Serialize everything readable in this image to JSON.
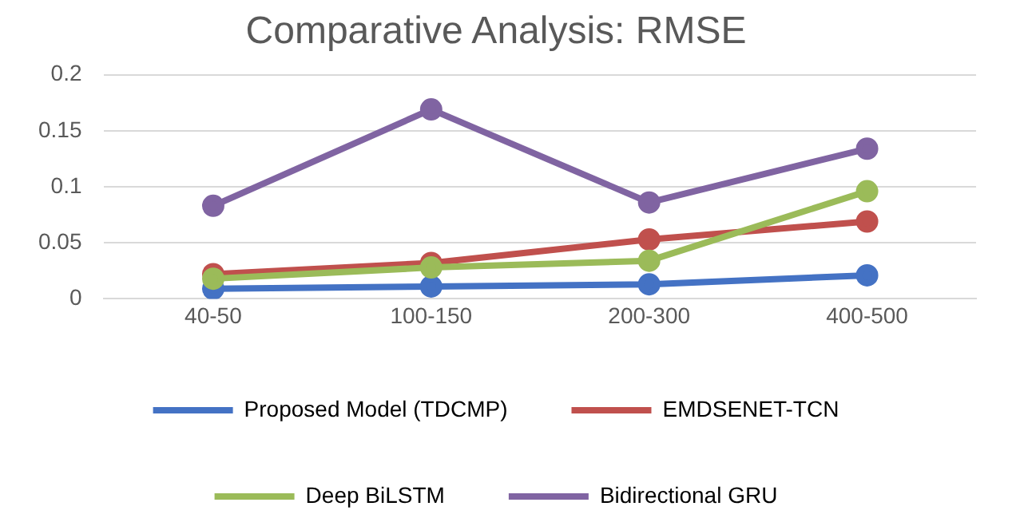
{
  "chart_data": {
    "type": "line",
    "title": "Comparative Analysis: RMSE",
    "categories": [
      "40-50",
      "100-150",
      "200-300",
      "400-500"
    ],
    "series": [
      {
        "name": "Proposed Model (TDCMP)",
        "color": "#4472c4",
        "values": [
          0.009,
          0.011,
          0.013,
          0.021
        ]
      },
      {
        "name": "EMDSENET-TCN",
        "color": "#c0504d",
        "values": [
          0.022,
          0.032,
          0.053,
          0.069
        ]
      },
      {
        "name": "Deep BiLSTM",
        "color": "#9bbb59",
        "values": [
          0.018,
          0.028,
          0.034,
          0.096
        ]
      },
      {
        "name": "Bidirectional GRU",
        "color": "#8064a2",
        "values": [
          0.083,
          0.169,
          0.086,
          0.134
        ]
      }
    ],
    "ylim": [
      0,
      0.2
    ],
    "yticks": [
      0,
      0.05,
      0.1,
      0.15,
      0.2
    ],
    "grid": "y",
    "legend": "bottom",
    "marker": "circle",
    "line_style": "solid"
  }
}
